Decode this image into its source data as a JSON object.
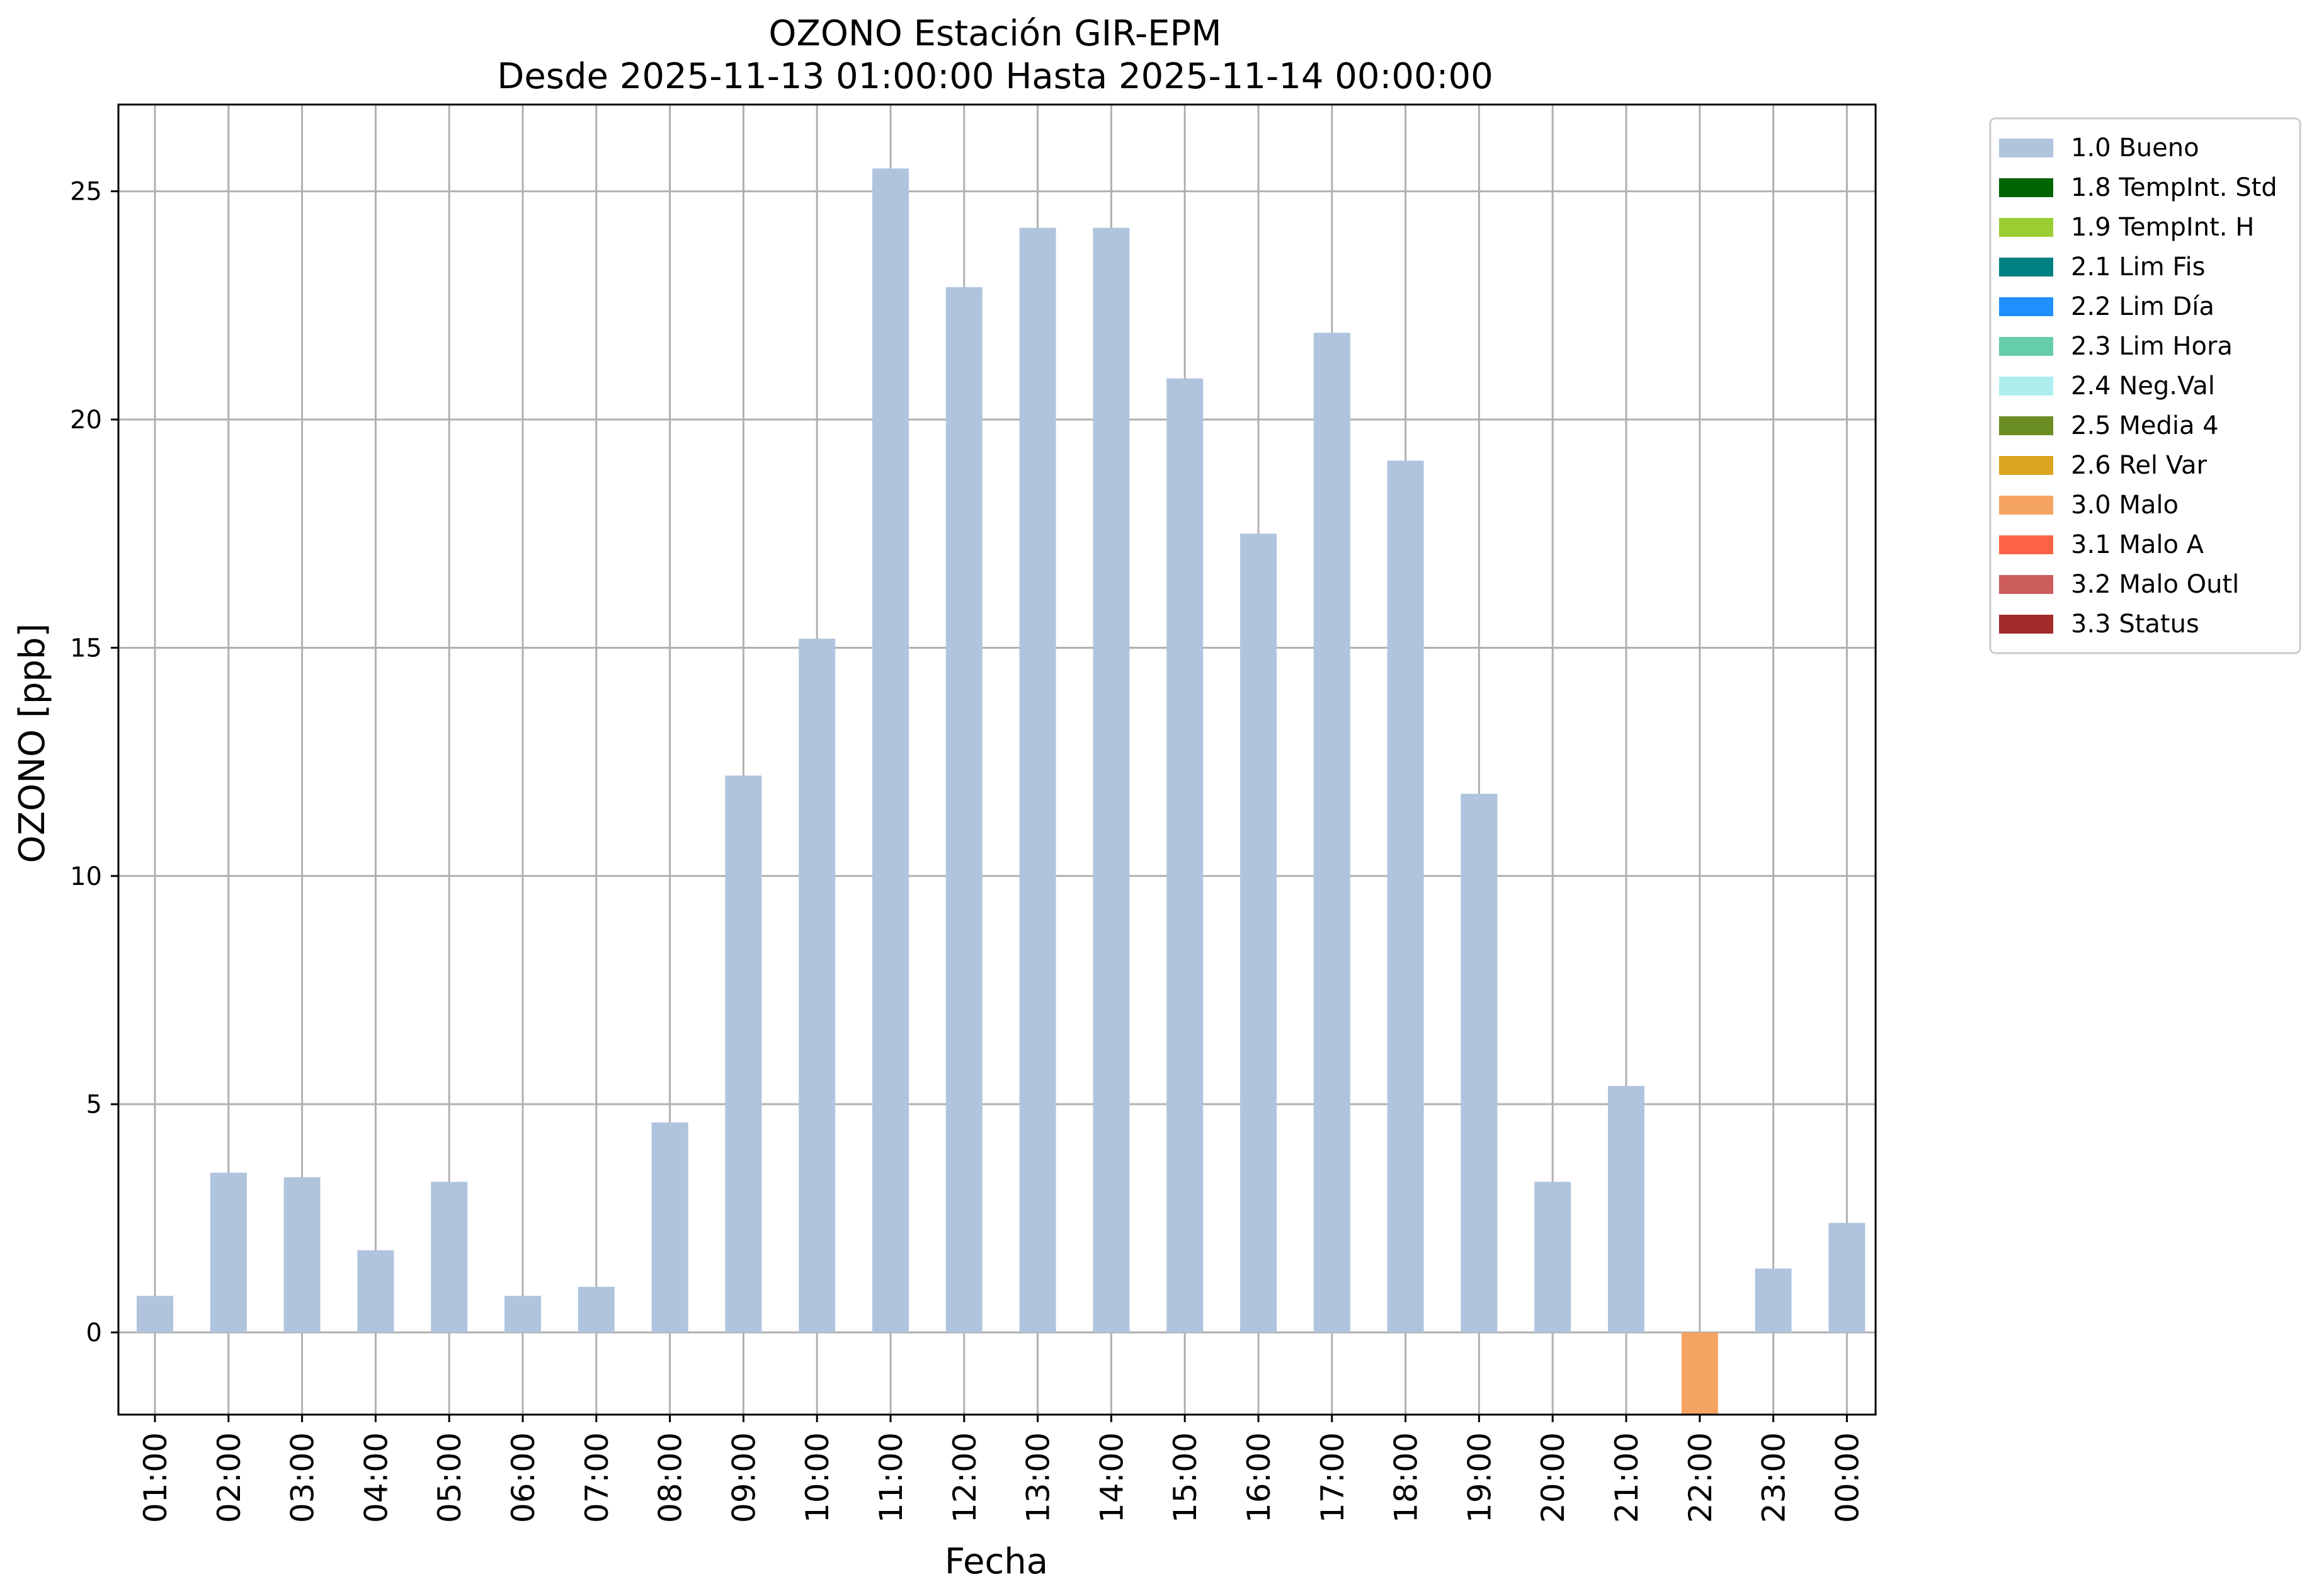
{
  "chart_data": {
    "type": "bar",
    "title": "OZONO Estación GIR-EPM",
    "subtitle": "Desde 2025-11-13 01:00:00 Hasta 2025-11-14 00:00:00",
    "xlabel": "Fecha",
    "ylabel": "OZONO [ppb]",
    "ylim": [
      -1.8,
      26.9
    ],
    "yticks": [
      0,
      5,
      10,
      15,
      20,
      25
    ],
    "grid": true,
    "legend_position": "outside-top-right",
    "categories": [
      "01:00",
      "02:00",
      "03:00",
      "04:00",
      "05:00",
      "06:00",
      "07:00",
      "08:00",
      "09:00",
      "10:00",
      "11:00",
      "12:00",
      "13:00",
      "14:00",
      "15:00",
      "16:00",
      "17:00",
      "18:00",
      "19:00",
      "20:00",
      "21:00",
      "22:00",
      "23:00",
      "00:00"
    ],
    "values": [
      0.8,
      3.5,
      3.4,
      1.8,
      3.3,
      0.8,
      1.0,
      4.6,
      12.2,
      15.2,
      25.5,
      22.9,
      24.2,
      24.2,
      20.9,
      17.5,
      21.9,
      19.1,
      11.8,
      3.3,
      5.4,
      -1.8,
      1.4,
      2.4
    ],
    "flags": [
      "1.0 Bueno",
      "1.0 Bueno",
      "1.0 Bueno",
      "1.0 Bueno",
      "1.0 Bueno",
      "1.0 Bueno",
      "1.0 Bueno",
      "1.0 Bueno",
      "1.0 Bueno",
      "1.0 Bueno",
      "1.0 Bueno",
      "1.0 Bueno",
      "1.0 Bueno",
      "1.0 Bueno",
      "1.0 Bueno",
      "1.0 Bueno",
      "1.0 Bueno",
      "1.0 Bueno",
      "1.0 Bueno",
      "1.0 Bueno",
      "1.0 Bueno",
      "3.0 Malo",
      "1.0 Bueno",
      "1.0 Bueno"
    ],
    "legend": [
      {
        "label": "1.0 Bueno",
        "color": "#b0c4de"
      },
      {
        "label": "1.8 TempInt. Std",
        "color": "#006400"
      },
      {
        "label": "1.9 TempInt. H",
        "color": "#9acd32"
      },
      {
        "label": "2.1 Lim Fis",
        "color": "#008080"
      },
      {
        "label": "2.2 Lim Día",
        "color": "#1e90ff"
      },
      {
        "label": "2.3 Lim Hora",
        "color": "#66cdaa"
      },
      {
        "label": "2.4 Neg.Val",
        "color": "#afeeee"
      },
      {
        "label": "2.5 Media 4",
        "color": "#6b8e23"
      },
      {
        "label": "2.6 Rel Var",
        "color": "#daa520"
      },
      {
        "label": "3.0 Malo",
        "color": "#f4a460"
      },
      {
        "label": "3.1 Malo A",
        "color": "#ff6347"
      },
      {
        "label": "3.2 Malo Outl",
        "color": "#cd5c5c"
      },
      {
        "label": "3.3 Status",
        "color": "#a52a2a"
      }
    ]
  }
}
